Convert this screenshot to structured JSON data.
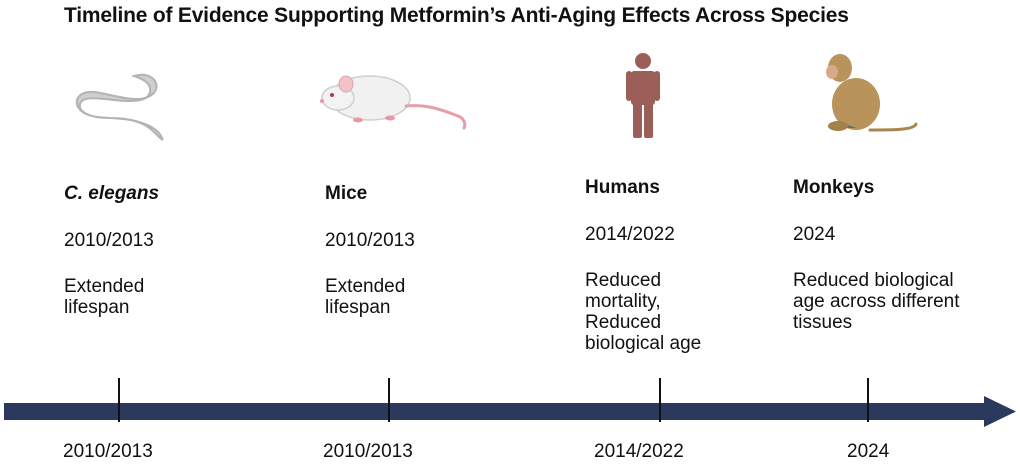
{
  "title": "Timeline of Evidence Supporting Metformin’s Anti-Aging Effects Across Species",
  "species": [
    {
      "name": "C. elegans",
      "year": "2010/2013",
      "effect": "Extended lifespan",
      "icon": "worm-icon"
    },
    {
      "name": "Mice",
      "year": "2010/2013",
      "effect": "Extended lifespan",
      "icon": "mouse-icon"
    },
    {
      "name": "Humans",
      "year": "2014/2022",
      "effect": "Reduced mortality, Reduced biological age",
      "icon": "human-icon"
    },
    {
      "name": "Monkeys",
      "year": "2024",
      "effect": "Reduced biological age across different tissues",
      "icon": "monkey-icon"
    }
  ],
  "axis": {
    "ticks": [
      "2010/2013",
      "2010/2013",
      "2014/2022",
      "2024"
    ],
    "colors": {
      "arrow": "#2b3a5c",
      "tick": "#111111"
    }
  }
}
